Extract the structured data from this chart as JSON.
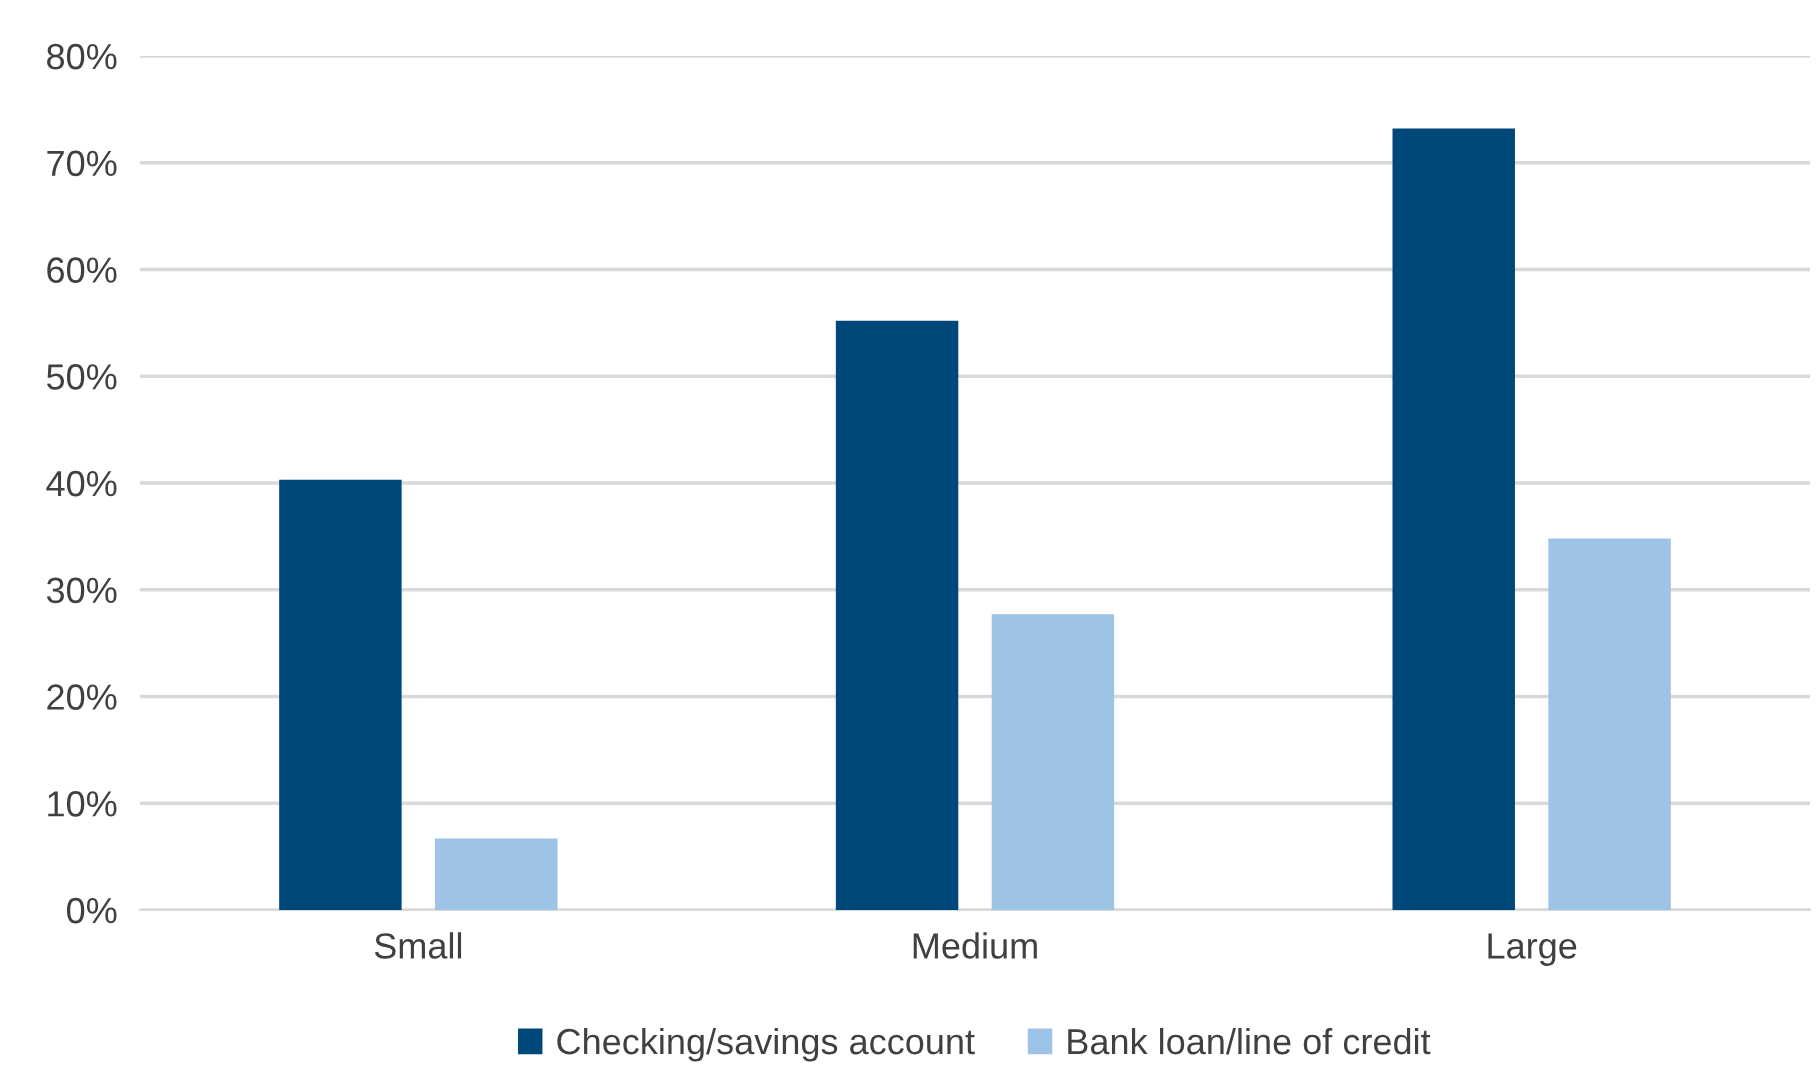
{
  "chart_data": {
    "type": "bar",
    "categories": [
      "Small",
      "Medium",
      "Large"
    ],
    "series": [
      {
        "name": "Checking/savings account",
        "color": "#00487a",
        "values": [
          40.3,
          55.2,
          73.2
        ]
      },
      {
        "name": "Bank loan/line of credit",
        "color": "#9dc3e6",
        "values": [
          6.7,
          27.7,
          34.8
        ]
      }
    ],
    "ylim": [
      0,
      80
    ],
    "yticks": [
      {
        "value": 0,
        "label": "0%"
      },
      {
        "value": 10,
        "label": "10%"
      },
      {
        "value": 20,
        "label": "20%"
      },
      {
        "value": 30,
        "label": "30%"
      },
      {
        "value": 40,
        "label": "40%"
      },
      {
        "value": 50,
        "label": "50%"
      },
      {
        "value": 60,
        "label": "60%"
      },
      {
        "value": 70,
        "label": "70%"
      },
      {
        "value": 80,
        "label": "80%"
      }
    ],
    "grid": "y",
    "legend": "bottom"
  }
}
